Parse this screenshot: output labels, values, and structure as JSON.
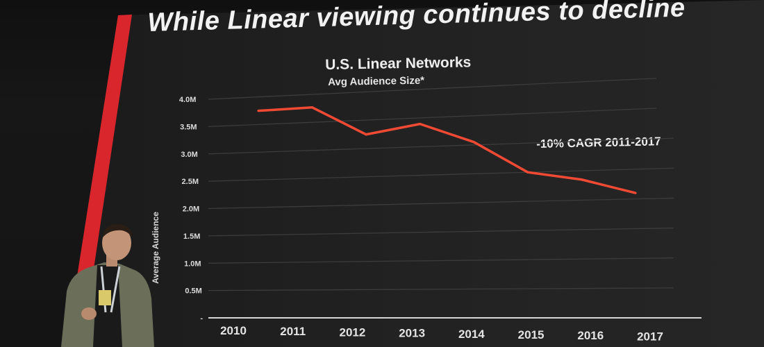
{
  "slide": {
    "title": "While Linear viewing continues to decline"
  },
  "chart_data": {
    "type": "line",
    "title": "U.S. Linear Networks",
    "subtitle": "Avg Audience Size*",
    "xlabel": "",
    "ylabel": "Average Audience",
    "categories": [
      "2010",
      "2011",
      "2012",
      "2013",
      "2014",
      "2015",
      "2016",
      "2017"
    ],
    "yticks": [
      "-",
      "0.5M",
      "1.0M",
      "1.5M",
      "2.0M",
      "2.5M",
      "3.0M",
      "3.5M",
      "4.0M"
    ],
    "ylim": [
      0,
      4.0
    ],
    "series": [
      {
        "x": [
          "2010",
          "2011",
          "2012",
          "2013",
          "2014",
          "2015",
          "2016",
          "2017"
        ],
        "values": [
          3.75,
          3.77,
          3.25,
          3.4,
          3.05,
          2.5,
          2.35,
          2.1
        ]
      }
    ],
    "annotation": "-10% CAGR 2011-2017",
    "grid": true,
    "legend": "none",
    "line_color": "#f04a35"
  },
  "colors": {
    "accent_bar": "#d8262c",
    "background": "#161616",
    "text": "#ececec"
  }
}
